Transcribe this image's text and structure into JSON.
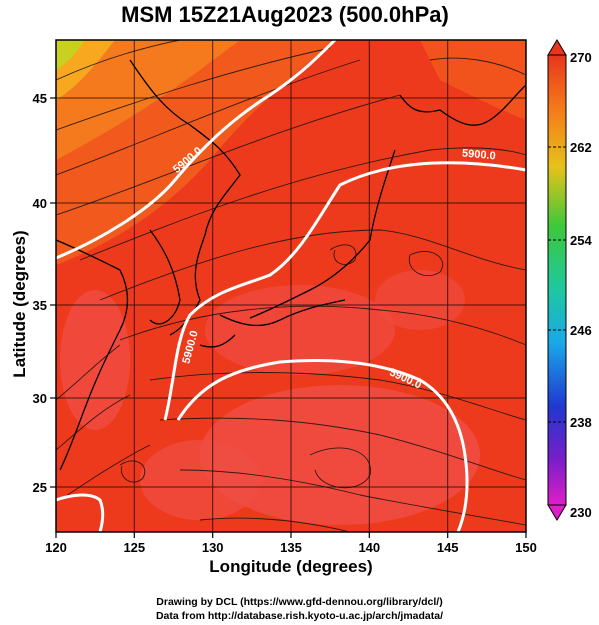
{
  "title": "MSM 15Z21Aug2023 (500.0hPa)",
  "axes": {
    "xlabel": "Longitude (degrees)",
    "ylabel": "Latitude  (degrees)",
    "x_ticks": [
      "120",
      "125",
      "130",
      "135",
      "140",
      "145",
      "150"
    ],
    "y_ticks": [
      "25",
      "30",
      "35",
      "40",
      "45"
    ]
  },
  "colorbar": {
    "min": 230,
    "max": 270,
    "ticks": [
      "270",
      "262",
      "254",
      "246",
      "238",
      "230"
    ]
  },
  "contours": [
    {
      "label": "5900.0"
    },
    {
      "label": "5900.0"
    },
    {
      "label": "5900.0"
    },
    {
      "label": "5900.0"
    }
  ],
  "credits": {
    "line1": "Drawing by DCL (https://www.gfd-dennou.org/library/dcl/)",
    "line2": "Data from http://database.rish.kyoto-u.ac.jp/arch/jmadata/"
  },
  "colors": {
    "field_main": "#ee3a1c",
    "field_cool": "#f56a1e",
    "field_warm": "#f45044",
    "contour": "#ffffff"
  }
}
